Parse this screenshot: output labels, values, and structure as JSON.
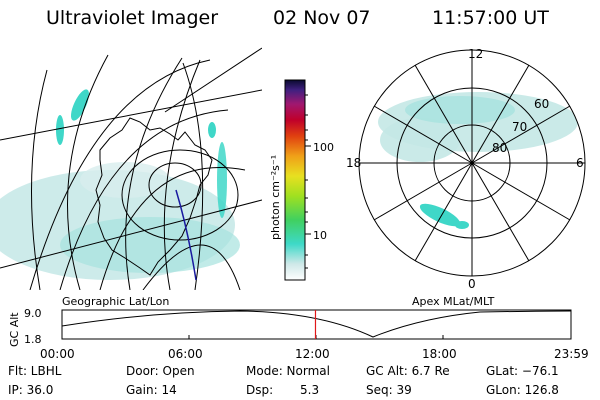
{
  "header": {
    "instrument": "Ultraviolet Imager",
    "date": "02 Nov 07",
    "time": "11:57:00 UT"
  },
  "geo_panel": {
    "caption": "Geographic Lat/Lon"
  },
  "apex_panel": {
    "caption": "Apex MLat/MLT",
    "mlt_labels": {
      "top": "12",
      "right": "6",
      "bottom": "0",
      "left": "18"
    },
    "lat_labels": [
      "60",
      "70",
      "80"
    ]
  },
  "colorbar": {
    "unit_label": "photon cm⁻²s⁻¹",
    "ticks": [
      "100",
      "10"
    ]
  },
  "altitude_plot": {
    "ylabel": "GC Alt",
    "yticks": [
      "9.0",
      "1.8"
    ],
    "xticks": [
      "00:00",
      "06:00",
      "12:00",
      "18:00",
      "23:59"
    ],
    "current_time_fraction": 0.498
  },
  "metadata": {
    "flt": "Flt: LBHL",
    "ip": "IP: 36.0",
    "door": "Door: Open",
    "gain": "Gain: 14",
    "mode": "Mode: Normal",
    "dsp_label": "Dsp:",
    "dsp_value": "5.3",
    "gc_alt": "GC Alt: 6.7 Re",
    "seq": "Seq: 39",
    "glat": "GLat: −76.1",
    "glon": "GLon: 126.8"
  },
  "colors": {
    "aurora_fill": "#c4e8e6",
    "aurora_bright": "#3fd7c8",
    "marker": "#e0181a",
    "track": "#1a1aa0"
  }
}
